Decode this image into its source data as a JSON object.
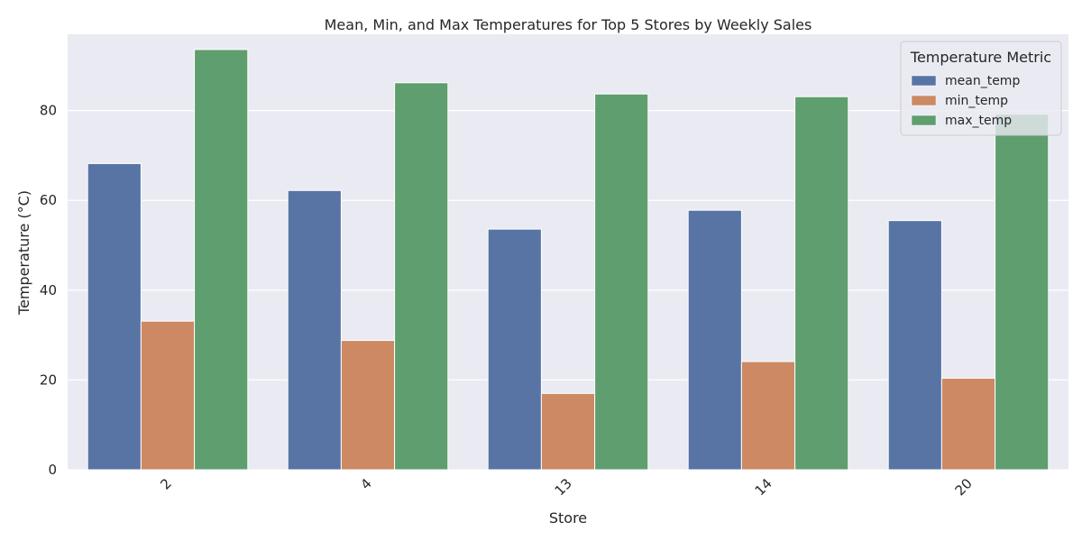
{
  "chart_data": {
    "type": "bar",
    "title": "Mean, Min, and Max Temperatures for Top 5 Stores by Weekly Sales",
    "xlabel": "Store",
    "ylabel": "Temperature (°C)",
    "categories": [
      "2",
      "4",
      "13",
      "14",
      "20"
    ],
    "series": [
      {
        "name": "mean_temp",
        "values": [
          68.2,
          62.2,
          53.6,
          57.8,
          55.5
        ],
        "color": "#5874a5"
      },
      {
        "name": "min_temp",
        "values": [
          33.1,
          28.8,
          17.0,
          24.1,
          20.4
        ],
        "color": "#cc8963"
      },
      {
        "name": "max_temp",
        "values": [
          93.6,
          86.2,
          83.7,
          83.1,
          79.2
        ],
        "color": "#5f9e6e"
      }
    ],
    "ylim": [
      0,
      97
    ],
    "yticks": [
      0,
      20,
      40,
      60,
      80
    ],
    "grid": true,
    "legend": {
      "title": "Temperature Metric",
      "position": "top-right"
    }
  }
}
